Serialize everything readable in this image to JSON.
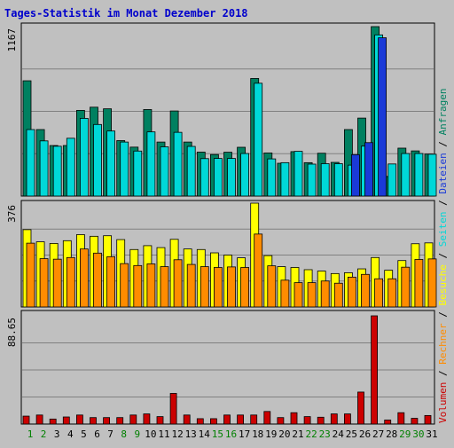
{
  "chart_data": {
    "type": "bar",
    "title": "Tages-Statistik im Monat Dezember 2018",
    "legend": {
      "entries": [
        {
          "label": "Volumen",
          "color": "#cc0000"
        },
        {
          "label": "Rechner",
          "color": "#ff8c00"
        },
        {
          "label": "Besuche",
          "color": "#ffff00"
        },
        {
          "label": "Seiten",
          "color": "#00d8d8"
        },
        {
          "label": "Dateien",
          "color": "#1a3ad8"
        },
        {
          "label": "Anfragen",
          "color": "#008060"
        }
      ],
      "separator": " / "
    },
    "categories": [
      "1",
      "2",
      "3",
      "4",
      "5",
      "6",
      "7",
      "8",
      "9",
      "10",
      "11",
      "12",
      "13",
      "14",
      "15",
      "16",
      "17",
      "18",
      "19",
      "20",
      "21",
      "22",
      "23",
      "24",
      "25",
      "26",
      "27",
      "28",
      "29",
      "30",
      "31"
    ],
    "weekend_days": [
      "1",
      "2",
      "8",
      "9",
      "15",
      "16",
      "22",
      "23",
      "29",
      "30"
    ],
    "colors": {
      "weekday_label": "#000000",
      "weekend_label": "#008000",
      "title": "#0000cc",
      "background": "#c0c0c0",
      "plot": "#c0c0c0",
      "grid": "#808080"
    },
    "panels": [
      {
        "label": "1167",
        "ylim": [
          0,
          1167
        ],
        "series": [
          {
            "name": "Anfragen",
            "color": "#008060",
            "values": [
              794,
              458,
              348,
              348,
              590,
              612,
              601,
              382,
              337,
              596,
              372,
              586,
              372,
              303,
              286,
              302,
              336,
              810,
              297,
              226,
              306,
              230,
              295,
              232,
              458,
              537,
              1167,
              135,
              330,
              311,
              289
            ]
          },
          {
            "name": "Seiten",
            "color": "#00d8d8",
            "values": [
              458,
              380,
              343,
              398,
              535,
              493,
              448,
              372,
              310,
              442,
              339,
              439,
              342,
              258,
              259,
              259,
              293,
              777,
              256,
              230,
              308,
              220,
              223,
              223,
              213,
              344,
              1110,
              221,
              293,
              293,
              288
            ]
          },
          {
            "name": "Dateien",
            "color": "#1a3ad8",
            "values": [
              0,
              0,
              0,
              0,
              0,
              0,
              0,
              0,
              0,
              0,
              0,
              0,
              0,
              0,
              0,
              0,
              0,
              0,
              0,
              0,
              0,
              0,
              0,
              0,
              285,
              368,
              1090,
              0,
              0,
              0,
              0
            ]
          }
        ]
      },
      {
        "label": "376",
        "ylim": [
          0,
          376
        ],
        "series": [
          {
            "name": "Besuche",
            "color": "#ffff00",
            "values": [
              280,
              236,
              230,
              240,
              262,
              256,
              258,
              244,
              208,
              222,
              215,
              245,
              210,
              208,
              196,
              188,
              178,
              376,
              186,
              146,
              143,
              135,
              130,
              121,
              124,
              138,
              179,
              133,
              168,
              229,
              232
            ]
          },
          {
            "name": "Rechner",
            "color": "#ff8c00",
            "values": [
              231,
              175,
              173,
              179,
              210,
              195,
              182,
              157,
              150,
              156,
              146,
              171,
              154,
              146,
              143,
              145,
              143,
              264,
              149,
              97,
              88,
              88,
              94,
              86,
              108,
              118,
              102,
              102,
              144,
              172,
              174
            ]
          }
        ]
      },
      {
        "label": "88.65",
        "ylim": [
          0,
          88.65
        ],
        "series": [
          {
            "name": "Volumen",
            "color": "#cc0000",
            "values": [
              6.5,
              7.4,
              4.1,
              5.8,
              7.4,
              5.3,
              5.3,
              5.3,
              7.4,
              8.3,
              6.1,
              25.1,
              7.4,
              4.4,
              4.4,
              7.4,
              7.4,
              7.4,
              10.3,
              5.3,
              9.3,
              6.1,
              5.6,
              8.3,
              8.3,
              26.2,
              88.65,
              3.3,
              9.3,
              4.7,
              7.0
            ]
          }
        ]
      }
    ]
  }
}
